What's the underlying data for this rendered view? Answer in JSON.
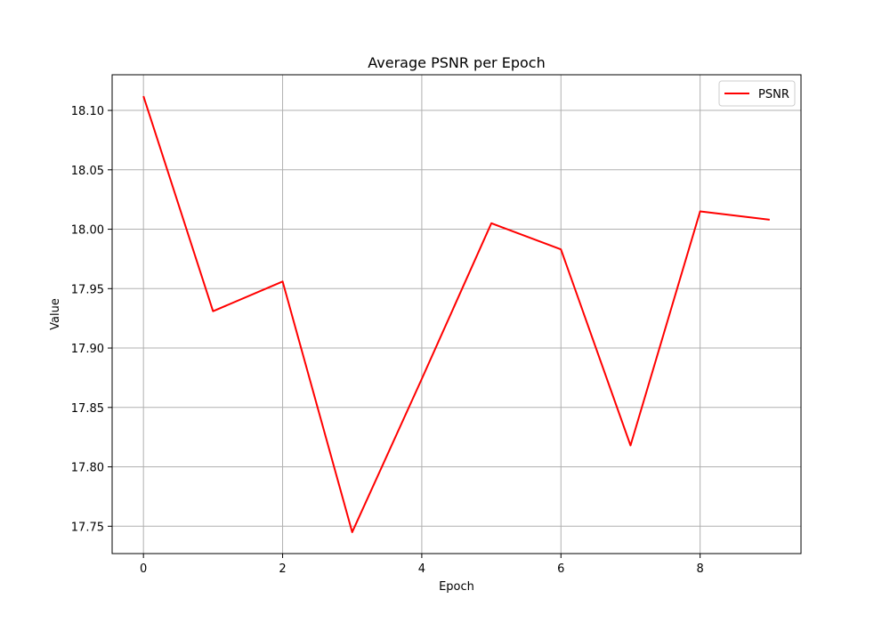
{
  "chart_data": {
    "type": "line",
    "title": "Average PSNR per Epoch",
    "xlabel": "Epoch",
    "ylabel": "Value",
    "x": [
      0,
      1,
      2,
      3,
      4,
      5,
      6,
      7,
      8,
      9
    ],
    "series": [
      {
        "name": "PSNR",
        "color": "#ff0000",
        "values": [
          18.112,
          17.931,
          17.956,
          17.745,
          17.874,
          18.005,
          17.983,
          17.818,
          18.015,
          18.008
        ]
      }
    ],
    "xlim": [
      -0.45,
      9.45
    ],
    "ylim": [
      17.727,
      18.13
    ],
    "xticks": [
      0,
      2,
      4,
      6,
      8
    ],
    "xtick_labels": [
      "0",
      "2",
      "4",
      "6",
      "8"
    ],
    "yticks": [
      17.75,
      17.8,
      17.85,
      17.9,
      17.95,
      18.0,
      18.05,
      18.1
    ],
    "ytick_labels": [
      "17.75",
      "17.80",
      "17.85",
      "17.90",
      "17.95",
      "18.00",
      "18.05",
      "18.10"
    ],
    "grid": true,
    "legend_position": "top-right"
  }
}
